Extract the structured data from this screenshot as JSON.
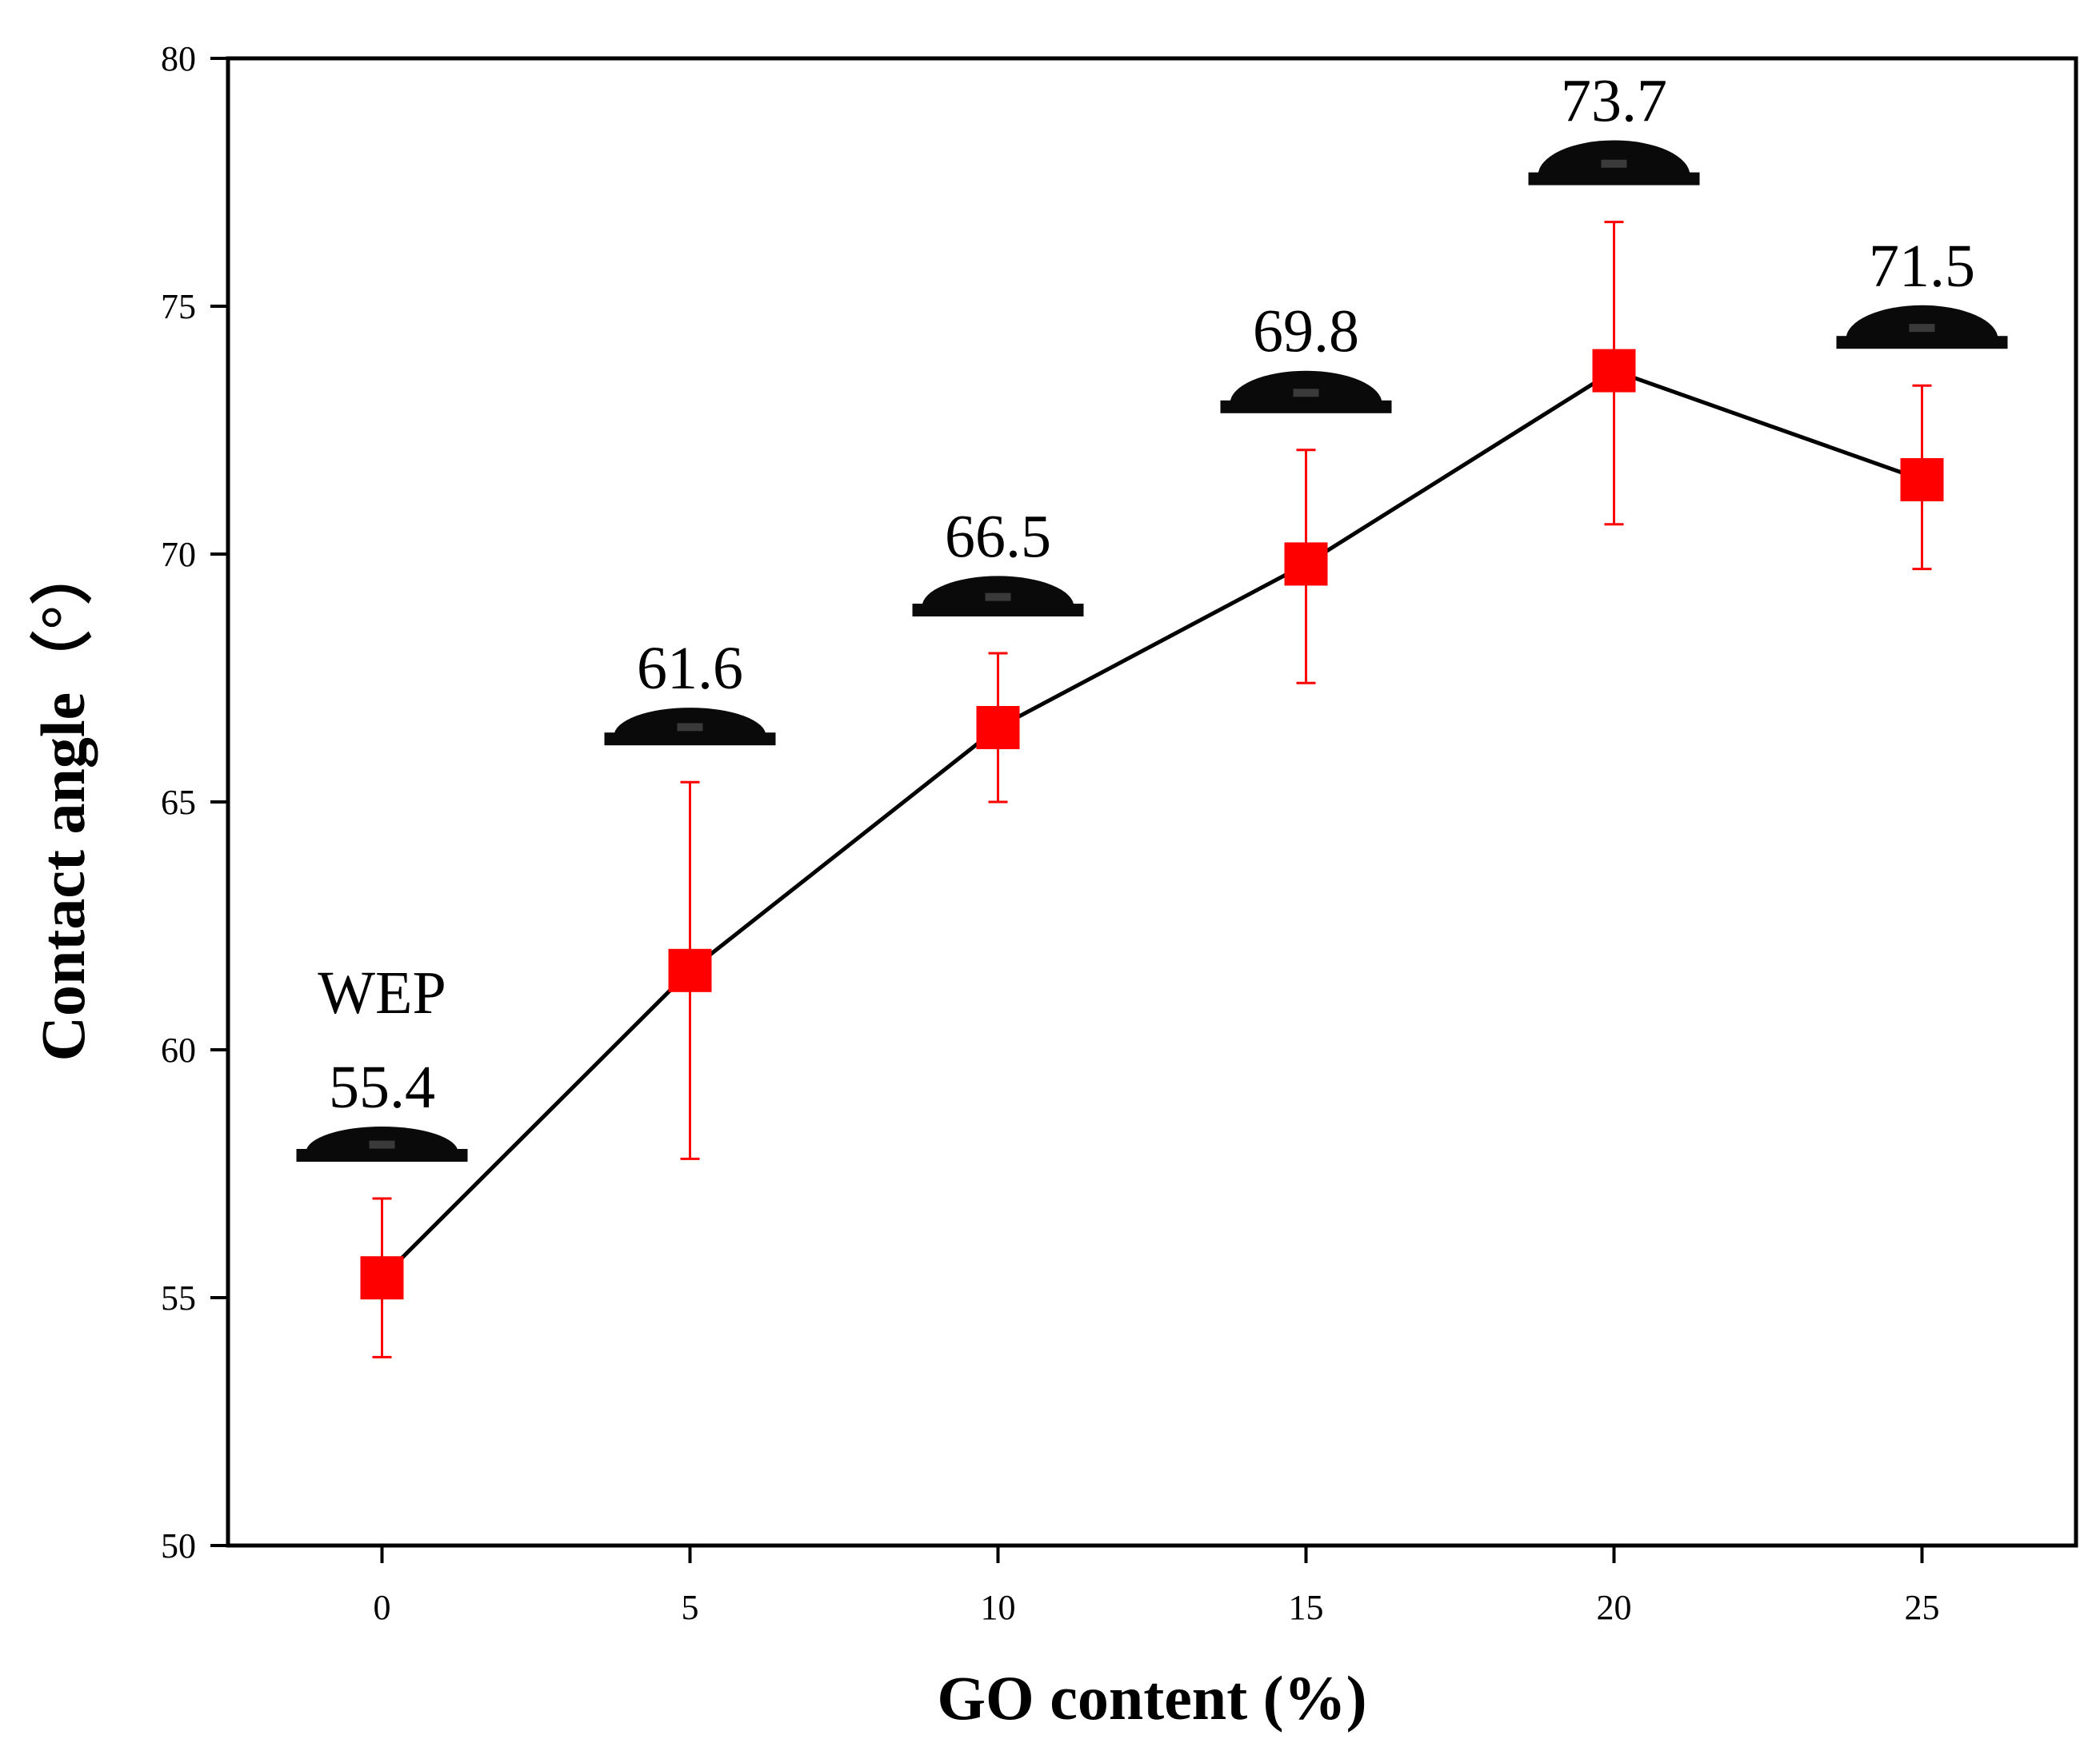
{
  "chart_data": {
    "type": "scatter",
    "title": "",
    "xlabel": "GO content (%)",
    "ylabel": "Contact angle（°）",
    "xlim": [
      -2.5,
      27.5
    ],
    "ylim": [
      50,
      80
    ],
    "xticks": [
      "0",
      "5",
      "10",
      "15",
      "20",
      "25"
    ],
    "yticks": [
      "50",
      "55",
      "60",
      "65",
      "70",
      "75",
      "80"
    ],
    "grid": false,
    "legend": "none",
    "series": [
      {
        "name": "Contact angle",
        "marker": "square",
        "line": true,
        "x": [
          0,
          5,
          10,
          15,
          20,
          25
        ],
        "y": [
          55.4,
          61.6,
          66.5,
          69.8,
          73.7,
          71.5
        ],
        "error_low": [
          53.8,
          57.8,
          65.0,
          67.4,
          70.6,
          69.7
        ],
        "error_high": [
          57.0,
          65.4,
          68.0,
          72.1,
          76.7,
          73.4
        ]
      }
    ],
    "annotations": [
      {
        "x": 0,
        "sample": "WEP",
        "label": "55.4"
      },
      {
        "x": 5,
        "label": "61.6"
      },
      {
        "x": 10,
        "label": "66.5"
      },
      {
        "x": 15,
        "label": "69.8"
      },
      {
        "x": 20,
        "label": "73.7"
      },
      {
        "x": 25,
        "label": "71.5"
      }
    ],
    "colors": {
      "marker": "#ff0000",
      "errorbar": "#ff0000",
      "line": "#000000",
      "droplet": "#0a0a0a",
      "axis": "#000000"
    },
    "droplet_icon": "water-droplet-icon"
  }
}
